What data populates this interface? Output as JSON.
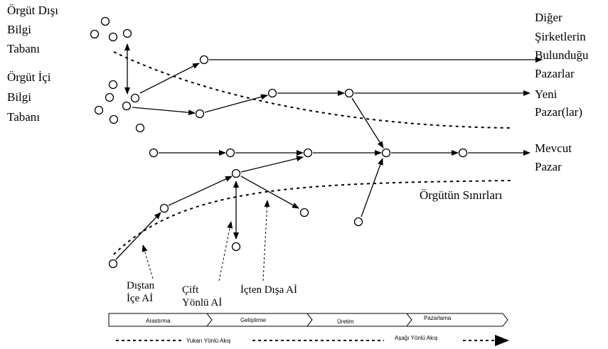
{
  "left_labels": {
    "external_base": [
      "Örgüt Dışı",
      "Bilgi",
      "Tabanı"
    ],
    "internal_base": [
      "Örgüt İçi",
      "Bilgi",
      "Tabanı"
    ]
  },
  "right_labels": {
    "other_markets": [
      "Diğer",
      "Şirketlerin",
      "Bulunduğu",
      "Pazarlar"
    ],
    "new_markets": [
      "Yeni",
      "Pazar(lar)"
    ],
    "current_market": [
      "Mevcut",
      "Pazar"
    ]
  },
  "boundary_label": "Örgütün Sınırları",
  "flow_labels": {
    "outside_in": [
      "Dıştan",
      "İçe Aİ"
    ],
    "coupled": [
      "Çift",
      "Yönlü Aİ"
    ],
    "inside_out": [
      "İçten Dışa Aİ"
    ]
  },
  "stages": [
    "Arastırma",
    "Geliştirme",
    "Üretim",
    "Pazarlama"
  ],
  "flow_direction": {
    "upstream": "Yukarı Yönlü Akış",
    "downstream": "Aşağı Yönlü Akış"
  },
  "colors": {
    "ink": "#000000",
    "stage_fill": "#ffffff"
  }
}
